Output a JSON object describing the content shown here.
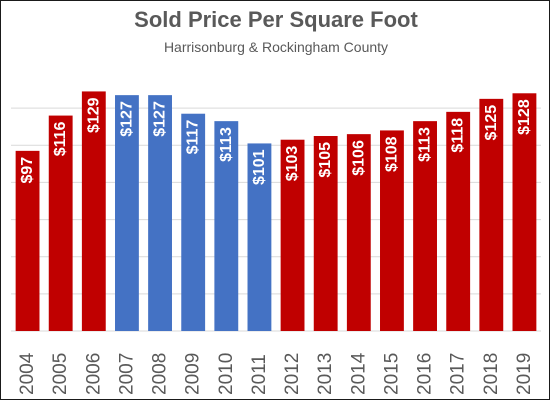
{
  "chart_data": {
    "type": "bar",
    "title": "Sold Price Per Square Foot",
    "subtitle": "Harrisonburg & Rockingham County",
    "xlabel": "",
    "ylabel": "",
    "categories": [
      "2004",
      "2005",
      "2006",
      "2007",
      "2008",
      "2009",
      "2010",
      "2011",
      "2012",
      "2013",
      "2014",
      "2015",
      "2016",
      "2017",
      "2018",
      "2019"
    ],
    "values": [
      97,
      116,
      129,
      127,
      127,
      117,
      113,
      101,
      103,
      105,
      106,
      108,
      113,
      118,
      125,
      128
    ],
    "data_labels": [
      "$97",
      "$116",
      "$129",
      "$127",
      "$127",
      "$117",
      "$113",
      "$101",
      "$103",
      "$105",
      "$106",
      "$108",
      "$113",
      "$118",
      "$125",
      "$128"
    ],
    "bar_colors": [
      "#c00000",
      "#c00000",
      "#c00000",
      "#4472c4",
      "#4472c4",
      "#4472c4",
      "#4472c4",
      "#4472c4",
      "#c00000",
      "#c00000",
      "#c00000",
      "#c00000",
      "#c00000",
      "#c00000",
      "#c00000",
      "#c00000"
    ],
    "ylim": [
      0,
      140
    ],
    "gridlines": [
      20,
      40,
      60,
      80,
      100,
      120
    ],
    "grid": true,
    "legend": false,
    "colors": {
      "red": "#c00000",
      "blue": "#4472c4",
      "grid": "#d9d9d9",
      "text": "#595959"
    }
  }
}
